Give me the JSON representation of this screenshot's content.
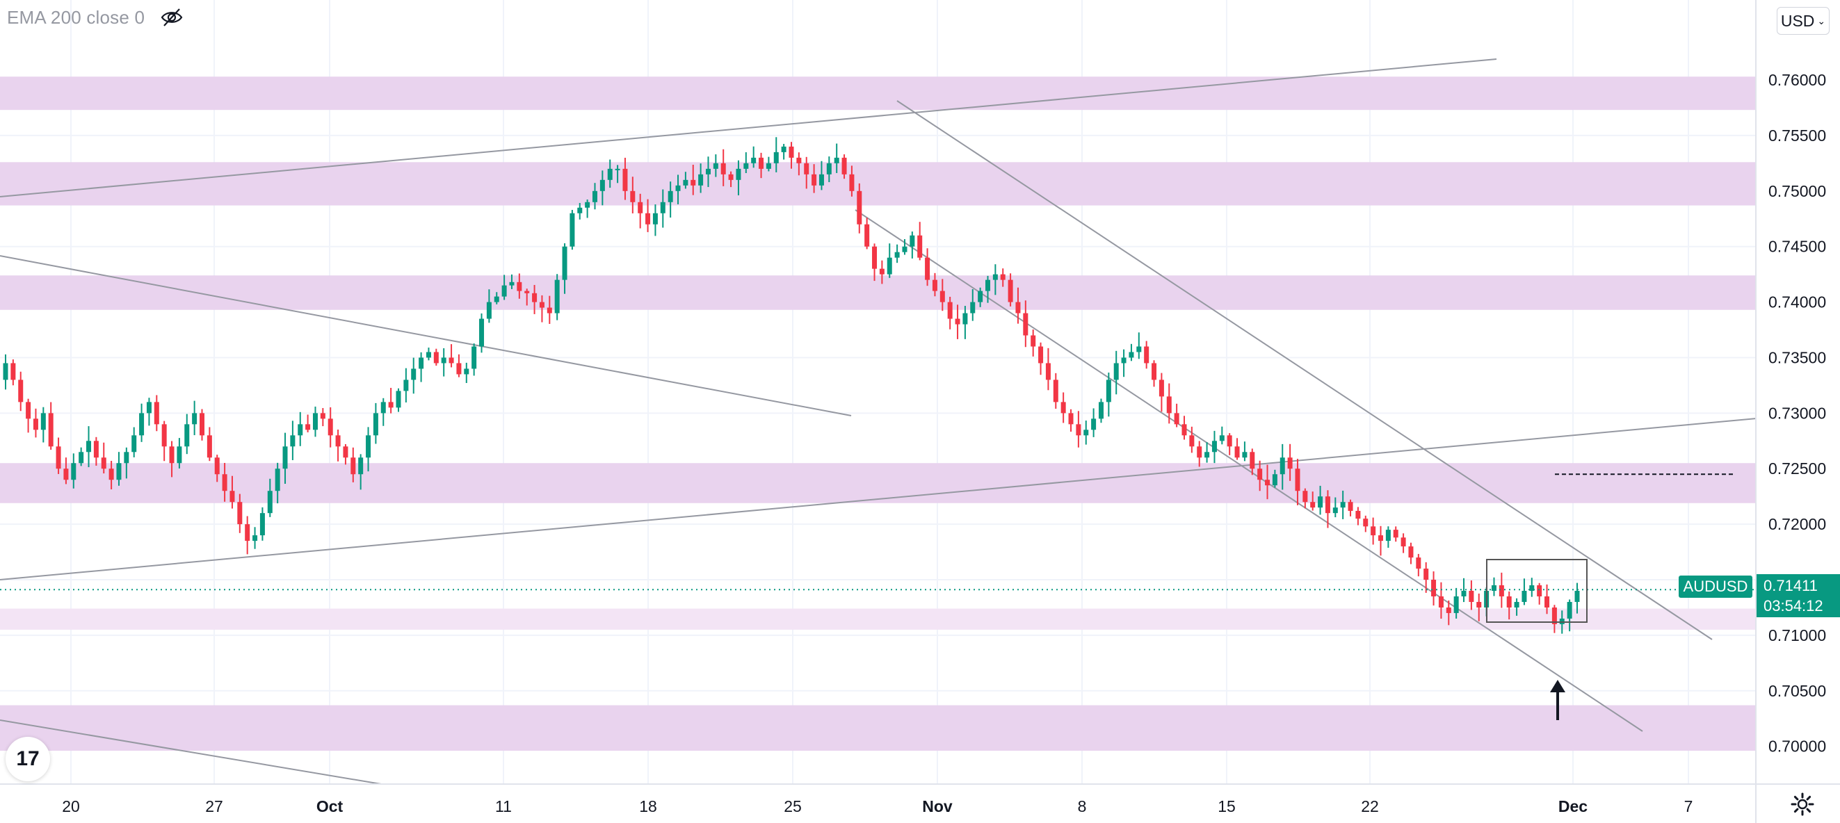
{
  "indicator": {
    "label": "EMA 200 close 0",
    "icon": "eye-crossed-icon"
  },
  "toolbar": {
    "currency_label": "USD"
  },
  "symbol": {
    "name": "AUDUSD",
    "last_price": "0.71411",
    "countdown": "03:54:12"
  },
  "branding": {
    "logo_text": "17"
  },
  "colors": {
    "up": "#089981",
    "down": "#f23645",
    "zone": "#e9d3ee",
    "zone_light": "#f3e4f5",
    "grid": "#f0f3fa",
    "trendline": "#9598a1",
    "axis_text": "#131722",
    "price_tag": "#089981"
  },
  "chart_data": {
    "type": "candlestick",
    "symbol": "AUDUSD",
    "y_ticks": [
      "0.76000",
      "0.75500",
      "0.75000",
      "0.74500",
      "0.74000",
      "0.73500",
      "0.73000",
      "0.72500",
      "0.72000",
      "0.71500",
      "0.71000",
      "0.70500",
      "0.70000"
    ],
    "x_ticks": [
      "20",
      "27",
      "Oct",
      "11",
      "18",
      "25",
      "Nov",
      "8",
      "15",
      "22",
      "Dec",
      "7"
    ],
    "ylim": [
      0.6966,
      0.7672
    ],
    "zones": [
      {
        "from": 0.7573,
        "to": 0.7603
      },
      {
        "from": 0.7487,
        "to": 0.7526
      },
      {
        "from": 0.7393,
        "to": 0.7424
      },
      {
        "from": 0.7219,
        "to": 0.7255
      },
      {
        "from": 0.7105,
        "to": 0.7124,
        "light": true
      },
      {
        "from": 0.6996,
        "to": 0.7037
      }
    ],
    "last_price": 0.71411,
    "target_level": 0.7245,
    "series_close": [
      0.7345,
      0.733,
      0.731,
      0.7295,
      0.7285,
      0.73,
      0.727,
      0.725,
      0.724,
      0.7255,
      0.7265,
      0.7275,
      0.726,
      0.725,
      0.724,
      0.7255,
      0.7265,
      0.728,
      0.73,
      0.731,
      0.729,
      0.727,
      0.7255,
      0.727,
      0.729,
      0.73,
      0.728,
      0.726,
      0.7245,
      0.723,
      0.722,
      0.72,
      0.7185,
      0.719,
      0.721,
      0.723,
      0.725,
      0.727,
      0.728,
      0.729,
      0.7285,
      0.73,
      0.7295,
      0.728,
      0.727,
      0.726,
      0.7245,
      0.726,
      0.728,
      0.73,
      0.731,
      0.7305,
      0.732,
      0.733,
      0.734,
      0.735,
      0.7355,
      0.7345,
      0.735,
      0.7345,
      0.7335,
      0.734,
      0.736,
      0.7385,
      0.74,
      0.7405,
      0.7415,
      0.7418,
      0.741,
      0.7408,
      0.74,
      0.7395,
      0.739,
      0.742,
      0.745,
      0.748,
      0.7485,
      0.749,
      0.75,
      0.751,
      0.752,
      0.752,
      0.75,
      0.749,
      0.748,
      0.747,
      0.748,
      0.749,
      0.75,
      0.7505,
      0.751,
      0.7505,
      0.7515,
      0.752,
      0.7525,
      0.7515,
      0.751,
      0.752,
      0.7525,
      0.753,
      0.752,
      0.7525,
      0.7535,
      0.754,
      0.753,
      0.7525,
      0.7515,
      0.7505,
      0.7515,
      0.7525,
      0.753,
      0.7515,
      0.75,
      0.747,
      0.745,
      0.743,
      0.7425,
      0.744,
      0.7445,
      0.745,
      0.746,
      0.744,
      0.742,
      0.741,
      0.74,
      0.7385,
      0.738,
      0.739,
      0.74,
      0.741,
      0.742,
      0.7425,
      0.742,
      0.74,
      0.739,
      0.737,
      0.736,
      0.7345,
      0.733,
      0.731,
      0.73,
      0.729,
      0.728,
      0.7285,
      0.7295,
      0.731,
      0.733,
      0.7345,
      0.735,
      0.7355,
      0.736,
      0.7345,
      0.733,
      0.7315,
      0.73,
      0.729,
      0.728,
      0.727,
      0.726,
      0.7265,
      0.7275,
      0.728,
      0.727,
      0.726,
      0.7265,
      0.725,
      0.724,
      0.7235,
      0.7245,
      0.726,
      0.725,
      0.723,
      0.722,
      0.7215,
      0.7225,
      0.721,
      0.7215,
      0.722,
      0.7212,
      0.7205,
      0.7198,
      0.719,
      0.7185,
      0.7195,
      0.7188,
      0.718,
      0.717,
      0.716,
      0.715,
      0.7135,
      0.7125,
      0.712,
      0.7135,
      0.714,
      0.713,
      0.7125,
      0.714,
      0.7145,
      0.7135,
      0.7125,
      0.713,
      0.714,
      0.7145,
      0.7135,
      0.7125,
      0.711,
      0.7115,
      0.713,
      0.714
    ]
  }
}
